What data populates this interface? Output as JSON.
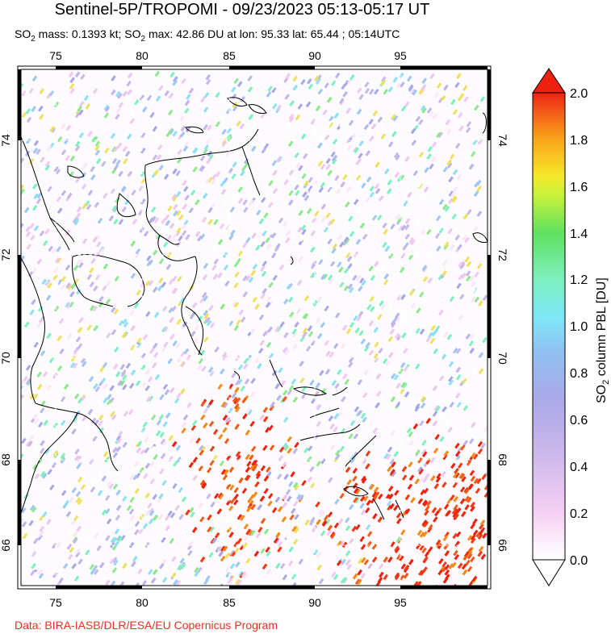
{
  "title": "Sentinel-5P/TROPOMI - 09/23/2023 05:13-05:17 UT",
  "subtitle": {
    "mass_prefix": "SO",
    "mass_sub": "2",
    "mass_text": " mass: 0.1393 kt; SO",
    "max_sub": "2",
    "max_text": " max: 42.86 DU at lon: 95.33 lat: 65.44 ; 05:14UTC"
  },
  "credit": "Data: BIRA-IASB/DLR/ESA/EU Copernicus Program",
  "map": {
    "lon_ticks": [
      "75",
      "80",
      "85",
      "90",
      "95"
    ],
    "lat_ticks": [
      "66",
      "68",
      "70",
      "72",
      "74"
    ]
  },
  "colorbar": {
    "title_prefix": "SO",
    "title_sub": "2",
    "title_suffix": " column PBL [DU]",
    "ticks": [
      "0.0",
      "0.2",
      "0.4",
      "0.6",
      "0.8",
      "1.0",
      "1.2",
      "1.4",
      "1.6",
      "1.8",
      "2.0"
    ],
    "colors": [
      "#ffffff",
      "#f3c7f3",
      "#c9b6ea",
      "#a7a7e6",
      "#8fc1f3",
      "#7fe7f7",
      "#80f0b0",
      "#5fe05f",
      "#c6f23a",
      "#f6e92a",
      "#f9a51a",
      "#f25a18",
      "#ee2211"
    ]
  }
}
